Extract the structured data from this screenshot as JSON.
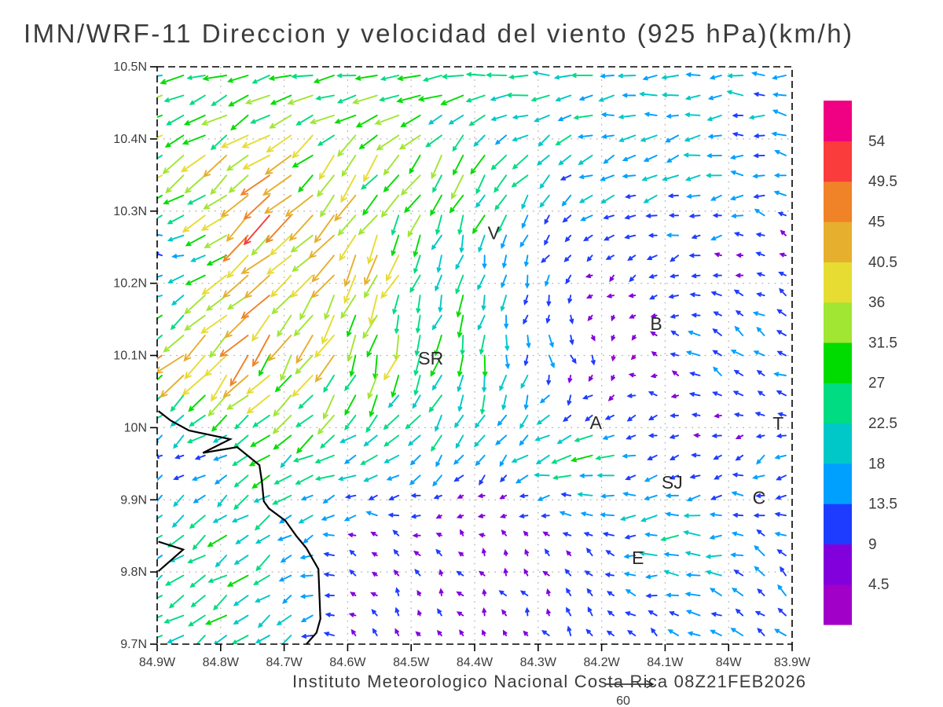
{
  "title": "IMN/WRF-11 Direccion y velocidad del viento (925 hPa)(km/h)",
  "caption": "Instituto Meteorologico Nacional Costa Rica 08Z21FEB2026",
  "colors": {
    "text": "#3c3c3c",
    "frame": "#000000",
    "grid": "#aaaaaa",
    "coast": "#000000",
    "station": "#2a2a2a"
  },
  "chart_data": {
    "type": "vector",
    "title": "IMN/WRF-11 Direccion y velocidad del viento (925 hPa)(km/h)",
    "units": "km/h",
    "level": "925 hPa",
    "xlim": [
      -84.9,
      -83.9
    ],
    "ylim": [
      9.7,
      10.5
    ],
    "x_ticks": [
      "84.9W",
      "84.8W",
      "84.7W",
      "84.6W",
      "84.5W",
      "84.4W",
      "84.3W",
      "84.2W",
      "84.1W",
      "84W",
      "83.9W"
    ],
    "y_ticks": [
      "10.5N",
      "10.4N",
      "10.3N",
      "10.2N",
      "10.1N",
      "10N",
      "9.9N",
      "9.8N",
      "9.7N"
    ],
    "grid": "dotted",
    "colorbar": {
      "position": "right",
      "levels": [
        4.5,
        9,
        13.5,
        18,
        22.5,
        27,
        31.5,
        36,
        40.5,
        45,
        49.5,
        54
      ],
      "colors": [
        "#A000C8",
        "#8200DC",
        "#1E3CFF",
        "#00A0FF",
        "#00C8C8",
        "#00DC82",
        "#00DC00",
        "#A0E632",
        "#E6DC32",
        "#E6AF2D",
        "#F08228",
        "#FA3C3C",
        "#F00082"
      ]
    },
    "reference_vector": {
      "value": 60,
      "label": "60"
    },
    "stations": [
      {
        "label": "V",
        "lon": -84.37,
        "lat": 10.27
      },
      {
        "label": "SR",
        "lon": -84.469,
        "lat": 10.096
      },
      {
        "label": "B",
        "lon": -84.114,
        "lat": 10.144
      },
      {
        "label": "A",
        "lon": -84.209,
        "lat": 10.007
      },
      {
        "label": "SJ",
        "lon": -84.089,
        "lat": 9.924
      },
      {
        "label": "C",
        "lon": -83.952,
        "lat": 9.903
      },
      {
        "label": "E",
        "lon": -84.143,
        "lat": 9.82
      },
      {
        "label": "T",
        "lon": -83.922,
        "lat": 10.006
      }
    ],
    "coastline": [
      [
        -84.898,
        10.023
      ],
      [
        -84.879,
        10.01
      ],
      [
        -84.85,
        9.996
      ],
      [
        -84.785,
        9.984
      ],
      [
        -84.828,
        9.965
      ],
      [
        -84.774,
        9.973
      ],
      [
        -84.739,
        9.948
      ],
      [
        -84.735,
        9.925
      ],
      [
        -84.732,
        9.898
      ],
      [
        -84.724,
        9.888
      ],
      [
        -84.698,
        9.871
      ],
      [
        -84.681,
        9.85
      ],
      [
        -84.665,
        9.833
      ],
      [
        -84.646,
        9.804
      ],
      [
        -84.643,
        9.735
      ],
      [
        -84.649,
        9.716
      ],
      [
        -84.665,
        9.7
      ]
    ],
    "peninsula": [
      [
        -84.898,
        9.842
      ],
      [
        -84.859,
        9.831
      ],
      [
        -84.898,
        9.801
      ]
    ],
    "wind_grid": {
      "comment": "coarse control field read from plot; u,v km/h toward east/north; rows ordered north to south",
      "lons": [
        -84.9,
        -84.733,
        -84.567,
        -84.4,
        -84.233,
        -84.067,
        -83.9
      ],
      "lats": [
        10.5,
        10.367,
        10.233,
        10.1,
        9.967,
        9.833,
        9.7
      ],
      "u": [
        [
          -22,
          -26,
          -26,
          -28,
          -22,
          -18,
          -15
        ],
        [
          -28,
          -28,
          -20,
          -12,
          -15,
          -17,
          -13
        ],
        [
          -8,
          -34,
          -16,
          -5,
          -8,
          -10,
          -8
        ],
        [
          -30,
          -24,
          -10,
          -6,
          6,
          -12,
          -10
        ],
        [
          -8,
          -18,
          -20,
          -8,
          -24,
          -7,
          -12
        ],
        [
          -19,
          -19,
          -7,
          -4,
          -5,
          -25,
          -8
        ],
        [
          -21,
          -19,
          -5,
          -4,
          -5,
          -10,
          -10
        ]
      ],
      "v": [
        [
          -7,
          -4,
          -2,
          0,
          0,
          0,
          0
        ],
        [
          -18,
          -24,
          -26,
          -24,
          -8,
          -5,
          5
        ],
        [
          4,
          -30,
          -30,
          -20,
          -5,
          -3,
          4
        ],
        [
          -27,
          -30,
          -30,
          -22,
          -10,
          7,
          9
        ],
        [
          -4,
          -14,
          -10,
          -16,
          -4,
          -3,
          -7
        ],
        [
          -12,
          -14,
          5,
          7,
          6,
          -2,
          9
        ],
        [
          -14,
          -13,
          6,
          7,
          8,
          6,
          12
        ]
      ]
    },
    "arrow_grid": {
      "cols": 30,
      "rows": 29
    }
  }
}
